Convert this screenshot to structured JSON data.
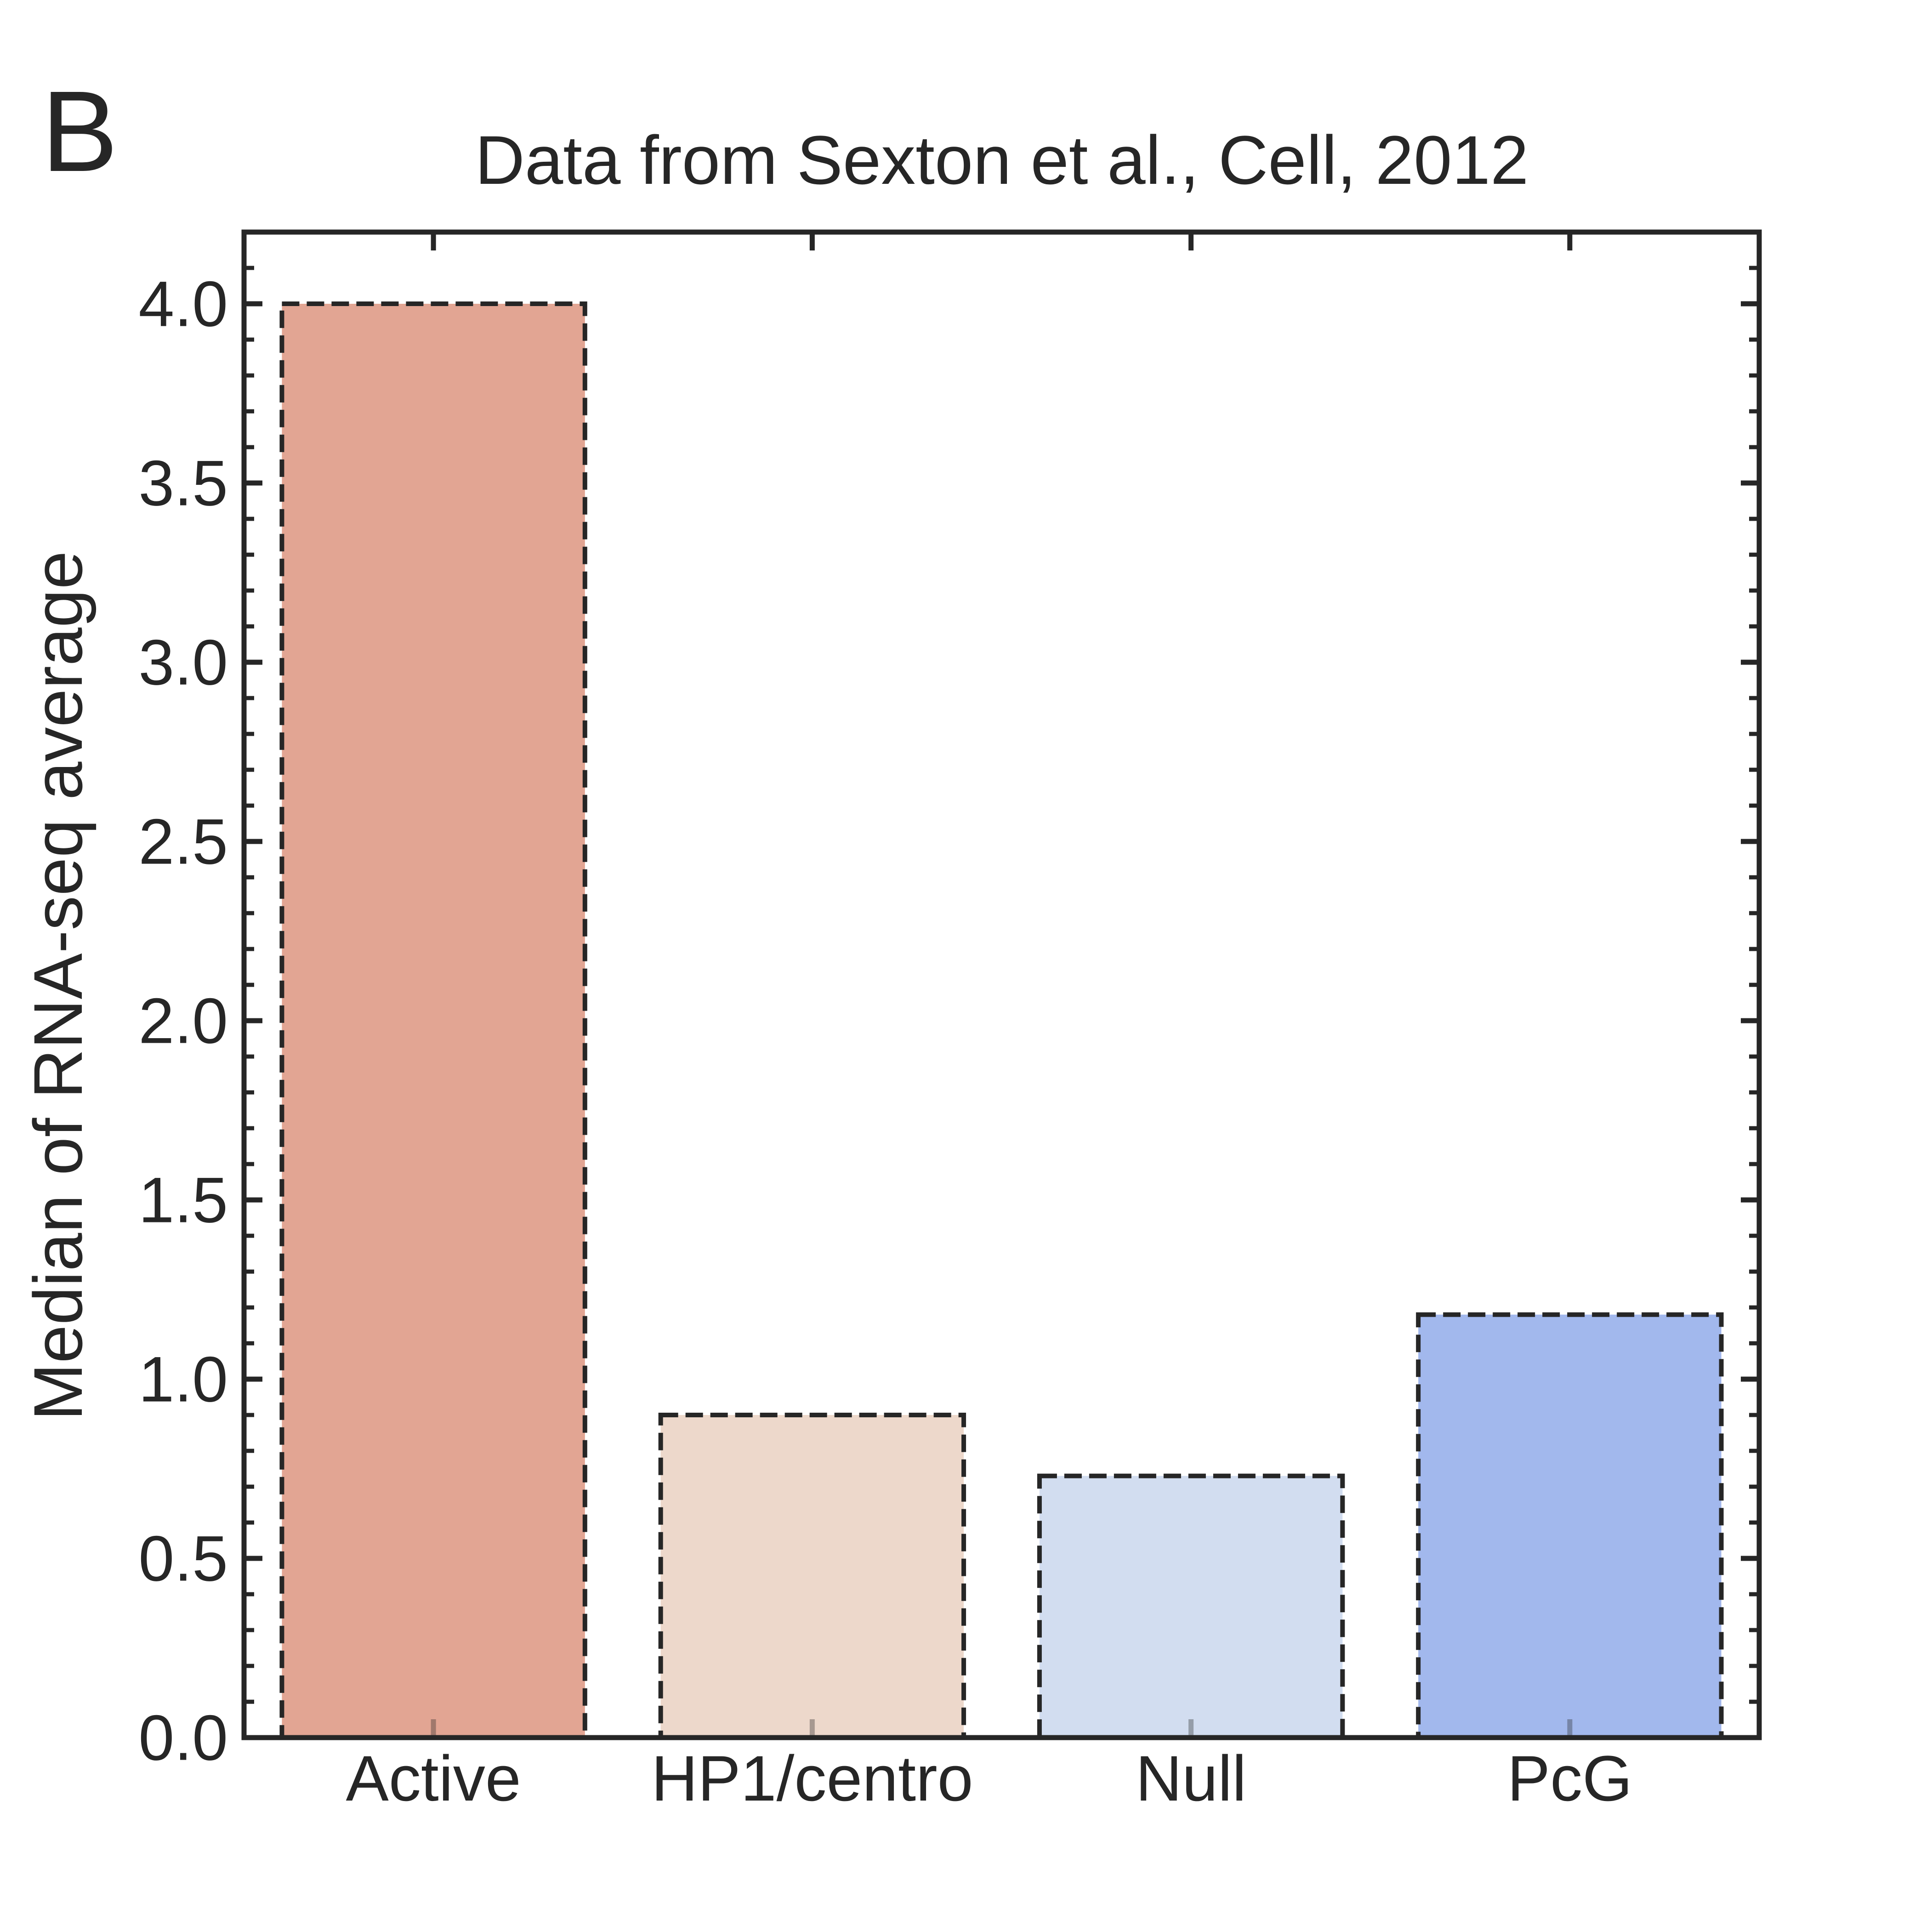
{
  "panel_label": "B",
  "chart_data": {
    "type": "bar",
    "title": "Data from Sexton et al., Cell, 2012",
    "xlabel": "",
    "ylabel": "Median of RNA-seq average",
    "categories": [
      "Active",
      "HP1/centro",
      "Null",
      "PcG"
    ],
    "values": [
      4.0,
      0.9,
      0.73,
      1.18
    ],
    "ylim": [
      0,
      4.2
    ],
    "yticks": [
      "0.0",
      "0.5",
      "1.0",
      "1.5",
      "2.0",
      "2.5",
      "3.0",
      "3.5",
      "4.0"
    ],
    "colors": [
      "#e2a593",
      "#edd8cb",
      "#d2ddf0",
      "#a2b8ed"
    ],
    "edge_color": "#262626",
    "edge_style": "dashed",
    "grid": false,
    "legend": "none"
  }
}
